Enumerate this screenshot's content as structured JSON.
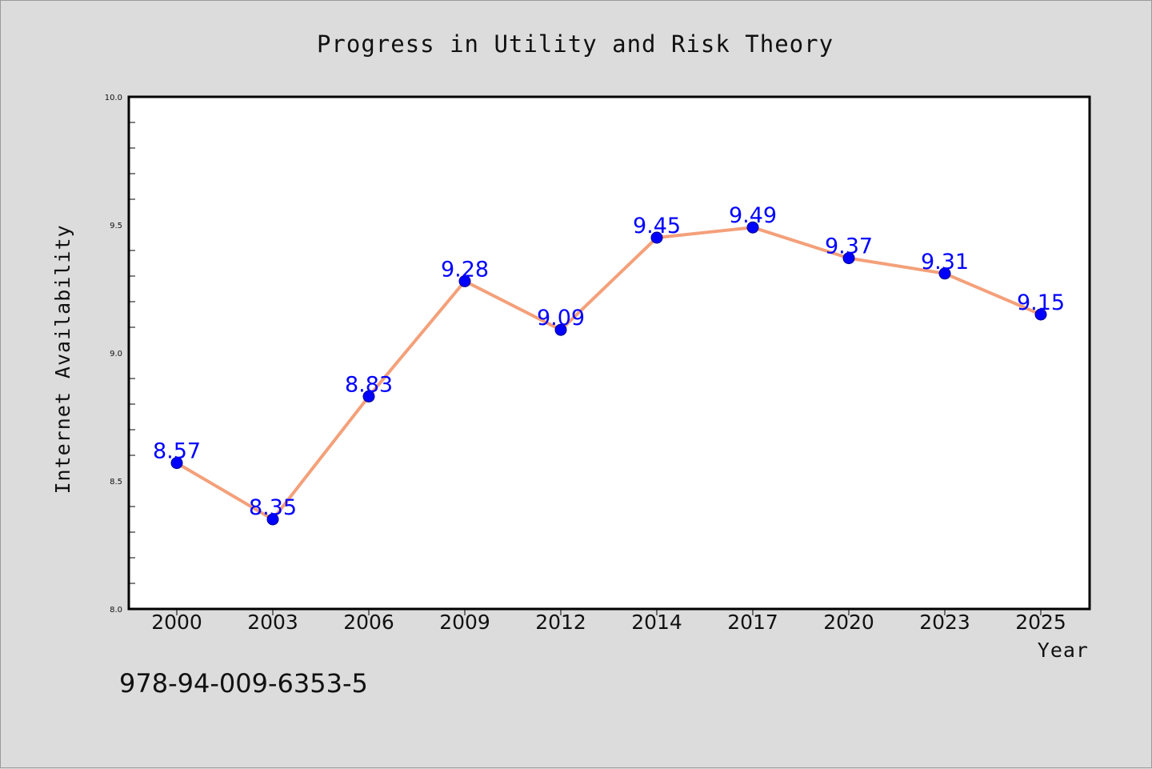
{
  "chart_data": {
    "type": "line",
    "title": "Progress in Utility and Risk Theory",
    "xlabel": "Year",
    "ylabel": "Internet Availability",
    "categories": [
      "2000",
      "2003",
      "2006",
      "2009",
      "2012",
      "2014",
      "2017",
      "2020",
      "2023",
      "2025"
    ],
    "series": [
      {
        "values": [
          8.57,
          8.35,
          8.83,
          9.28,
          9.09,
          9.45,
          9.49,
          9.37,
          9.31,
          9.15
        ],
        "labels": [
          "8.57",
          "8.35",
          "8.83",
          "9.28",
          "9.09",
          "9.45",
          "9.49",
          "9.37",
          "9.31",
          "9.15"
        ],
        "line_color": "#f4a07a",
        "marker_color": "#0000ff"
      }
    ],
    "ylim": [
      8.0,
      10.0
    ],
    "yticks": [
      "8.0",
      "8.5",
      "9.0",
      "9.5",
      "10.0"
    ],
    "grid": false,
    "legend": false
  },
  "footer": {
    "identifier": "978-94-009-6353-5"
  },
  "colors": {
    "background": "#dcdcdc",
    "plot_area": "#ffffff",
    "line": "#f4a07a",
    "marker": "#0000ff",
    "data_label": "#0000ff"
  }
}
